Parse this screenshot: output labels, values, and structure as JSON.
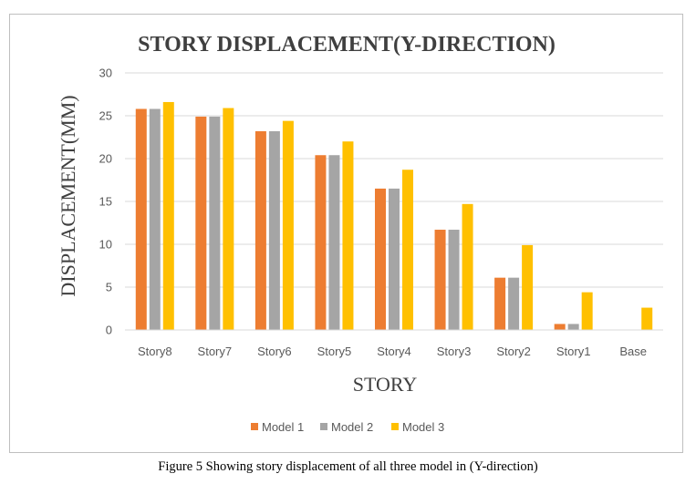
{
  "caption": "Figure 5 Showing story displacement of all three model in (Y-direction)",
  "chart_data": {
    "type": "bar",
    "title": "STORY DISPLACEMENT(Y-DIRECTION)",
    "xlabel": "STORY",
    "ylabel": "DISPLACEMENT(MM)",
    "categories": [
      "Story8",
      "Story7",
      "Story6",
      "Story5",
      "Story4",
      "Story3",
      "Story2",
      "Story1",
      "Base"
    ],
    "series": [
      {
        "name": "Model 1",
        "color": "#ed7d31",
        "values": [
          25.8,
          24.9,
          23.2,
          20.4,
          16.5,
          11.7,
          6.1,
          0.7,
          0
        ]
      },
      {
        "name": "Model 2",
        "color": "#a5a5a5",
        "values": [
          25.8,
          24.9,
          23.2,
          20.4,
          16.5,
          11.7,
          6.1,
          0.7,
          0
        ]
      },
      {
        "name": "Model 3",
        "color": "#ffc000",
        "values": [
          26.6,
          25.9,
          24.4,
          22.0,
          18.7,
          14.7,
          9.9,
          4.4,
          2.6
        ]
      }
    ],
    "ylim": [
      0,
      30
    ],
    "yticks": [
      0,
      5,
      10,
      15,
      20,
      25,
      30
    ],
    "grid": true,
    "legend_position": "bottom"
  }
}
